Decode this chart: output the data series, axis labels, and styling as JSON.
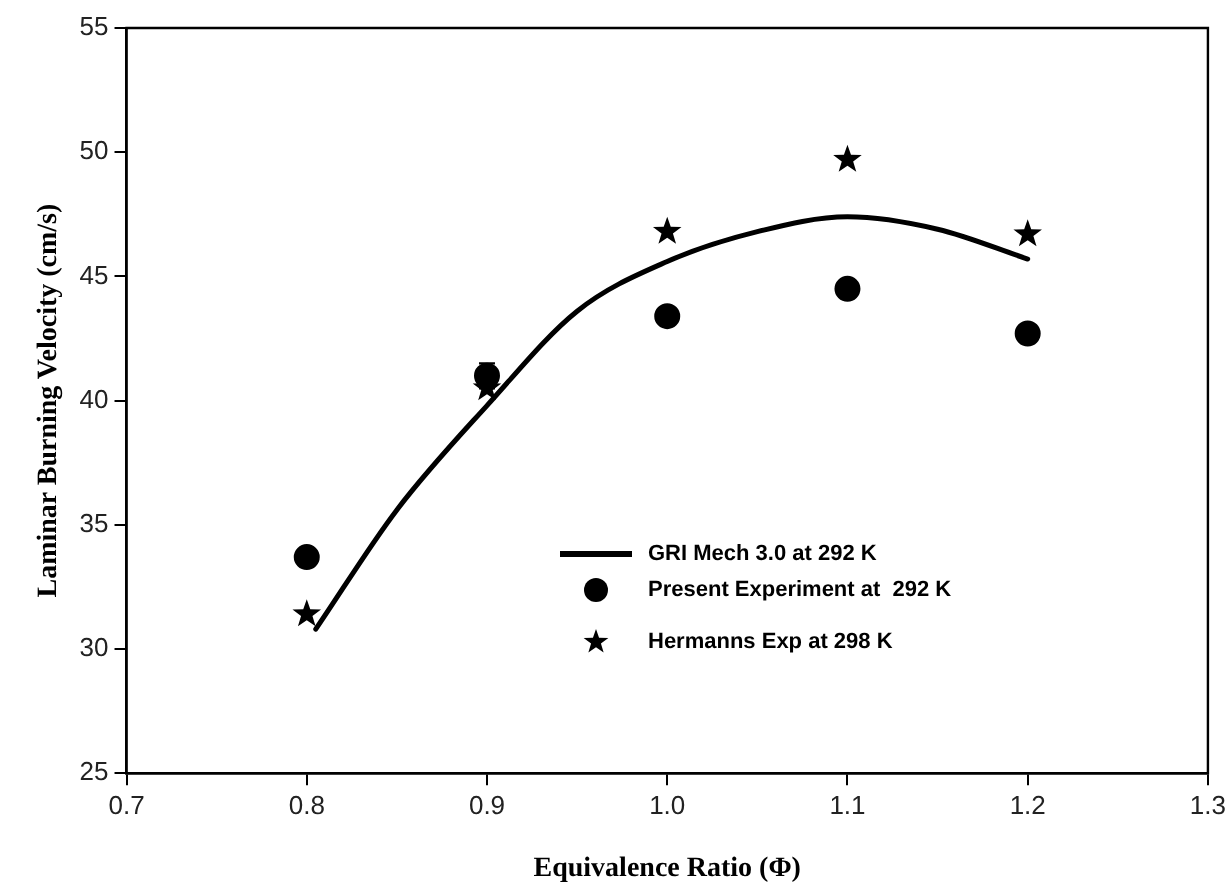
{
  "chart_data": {
    "type": "line",
    "xlabel": "Equivalence Ratio (Φ)",
    "ylabel": "Laminar Burning Velocity (cm/s)",
    "xlim": [
      0.7,
      1.3
    ],
    "xticks": [
      {
        "value": 0.7,
        "label": "0.7"
      },
      {
        "value": 0.8,
        "label": "0.8"
      },
      {
        "value": 0.9,
        "label": "0.9"
      },
      {
        "value": 1.0,
        "label": "1.0"
      },
      {
        "value": 1.1,
        "label": "1.1"
      },
      {
        "value": 1.2,
        "label": "1.2"
      },
      {
        "value": 1.3,
        "label": "1.3"
      }
    ],
    "ylim": [
      25,
      55
    ],
    "yticks": [
      25,
      30,
      35,
      40,
      45,
      50,
      55
    ],
    "grid": false,
    "legend": "bottom right",
    "series": [
      {
        "name": "GRI Mech 3.0 at 292 K",
        "type": "line",
        "marker": "none",
        "line_style": "solid",
        "color": "#000000",
        "x": [
          0.805,
          0.85,
          0.9,
          0.95,
          1.0,
          1.05,
          1.1,
          1.15,
          1.2
        ],
        "values": [
          30.8,
          35.6,
          39.8,
          43.6,
          45.6,
          46.8,
          47.4,
          46.9,
          45.7
        ]
      },
      {
        "name": "Present Experiment at  292 K",
        "type": "scatter",
        "marker": "circle",
        "color": "#000000",
        "x": [
          0.8,
          0.9,
          1.0,
          1.1,
          1.2
        ],
        "values": [
          33.7,
          41.0,
          43.4,
          44.5,
          42.7
        ],
        "errors": [
          null,
          0.5,
          null,
          null,
          null
        ]
      },
      {
        "name": "Hermanns Exp at 298 K",
        "type": "scatter",
        "marker": "star",
        "color": "#000000",
        "x": [
          0.8,
          0.9,
          1.0,
          1.1,
          1.2
        ],
        "values": [
          31.4,
          40.5,
          46.8,
          49.7,
          46.7
        ]
      }
    ]
  }
}
